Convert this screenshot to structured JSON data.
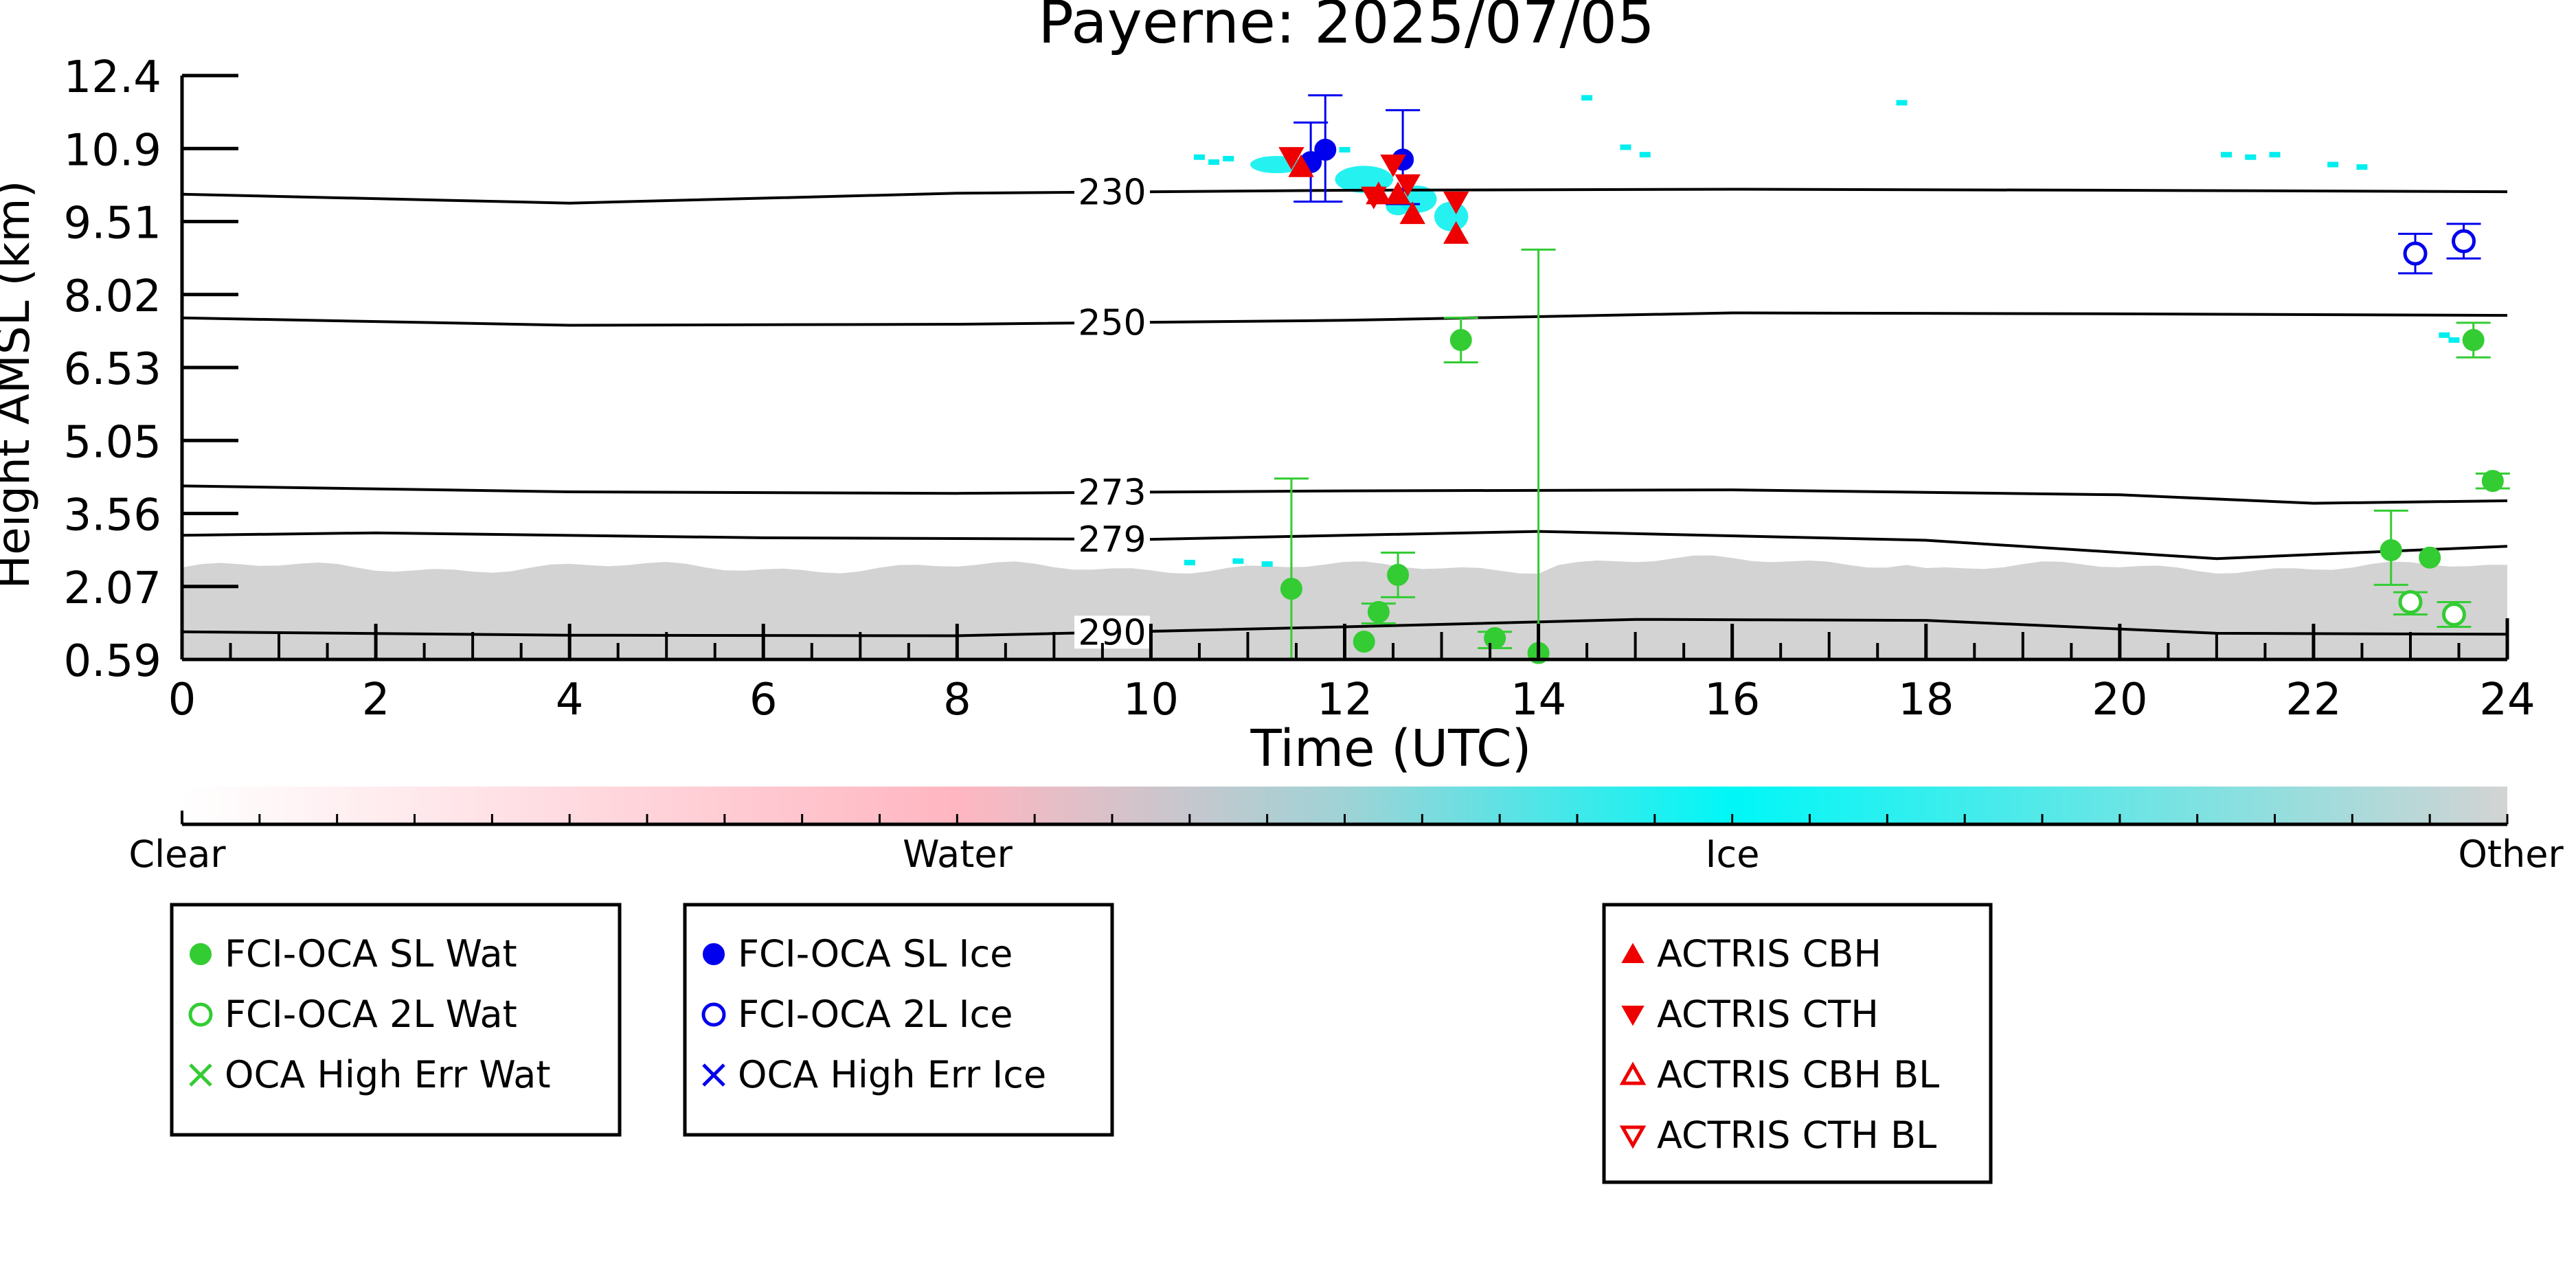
{
  "chart_data": {
    "type": "scatter",
    "title": "Payerne: 2025/07/05",
    "xlabel": "Time (UTC)",
    "ylabel": "Height AMSL (km)",
    "xlim": [
      0,
      24
    ],
    "ylim": [
      0.59,
      12.4
    ],
    "x_ticks": [
      "0",
      "2",
      "4",
      "6",
      "8",
      "10",
      "12",
      "14",
      "16",
      "18",
      "20",
      "22",
      "24"
    ],
    "y_ticks": [
      "0.59",
      "2.07",
      "3.56",
      "5.05",
      "6.53",
      "8.02",
      "9.51",
      "10.9",
      "12.4"
    ],
    "grid": false,
    "colors": {
      "water": "#33cc33",
      "ice": "#0000ee",
      "actris": "#ee0000",
      "ice_pixels": "#00eeee",
      "other_pixels": "#d3d3d3",
      "clear": "#ffffff",
      "water_class": "#ffb6c1"
    },
    "isotherms": [
      {
        "label": "230",
        "points": [
          [
            0,
            10.0
          ],
          [
            4,
            9.82
          ],
          [
            8,
            10.02
          ],
          [
            12,
            10.08
          ],
          [
            16,
            10.1
          ],
          [
            20,
            10.08
          ],
          [
            24,
            10.05
          ]
        ]
      },
      {
        "label": "250",
        "points": [
          [
            0,
            7.5
          ],
          [
            4,
            7.35
          ],
          [
            8,
            7.37
          ],
          [
            12,
            7.45
          ],
          [
            16,
            7.6
          ],
          [
            20,
            7.58
          ],
          [
            24,
            7.55
          ]
        ]
      },
      {
        "label": "273",
        "points": [
          [
            0,
            4.1
          ],
          [
            4,
            3.98
          ],
          [
            8,
            3.95
          ],
          [
            12,
            4.0
          ],
          [
            16,
            4.02
          ],
          [
            20,
            3.92
          ],
          [
            22,
            3.75
          ],
          [
            24,
            3.8
          ]
        ]
      },
      {
        "label": "279",
        "points": [
          [
            0,
            3.1
          ],
          [
            2,
            3.15
          ],
          [
            6,
            3.05
          ],
          [
            10,
            3.02
          ],
          [
            14,
            3.18
          ],
          [
            18,
            3.0
          ],
          [
            21,
            2.63
          ],
          [
            24,
            2.88
          ]
        ]
      },
      {
        "label": "290",
        "points": [
          [
            0,
            1.15
          ],
          [
            4,
            1.08
          ],
          [
            8,
            1.07
          ],
          [
            12,
            1.25
          ],
          [
            15,
            1.4
          ],
          [
            18,
            1.38
          ],
          [
            21,
            1.12
          ],
          [
            24,
            1.1
          ]
        ]
      }
    ],
    "series": [
      {
        "name": "FCI-OCA SL Wat",
        "marker": "filled-circle",
        "color": "#33cc33",
        "points": [
          {
            "x": 11.45,
            "y": 2.02,
            "lo": 0.59,
            "hi": 4.25
          },
          {
            "x": 12.2,
            "y": 0.95
          },
          {
            "x": 12.35,
            "y": 1.55,
            "lo": 1.32,
            "hi": 1.72
          },
          {
            "x": 12.55,
            "y": 2.3,
            "lo": 1.85,
            "hi": 2.75
          },
          {
            "x": 13.2,
            "y": 7.05,
            "lo": 6.6,
            "hi": 7.5
          },
          {
            "x": 13.55,
            "y": 1.02,
            "lo": 0.82,
            "hi": 1.15
          },
          {
            "x": 14.0,
            "y": 0.72,
            "lo": 0.59,
            "hi": 8.88
          },
          {
            "x": 22.8,
            "y": 2.8,
            "lo": 2.1,
            "hi": 3.6
          },
          {
            "x": 23.2,
            "y": 2.65
          },
          {
            "x": 23.65,
            "y": 7.05,
            "lo": 6.7,
            "hi": 7.4
          },
          {
            "x": 23.85,
            "y": 4.2,
            "lo": 4.05,
            "hi": 4.35
          }
        ]
      },
      {
        "name": "FCI-OCA 2L Wat",
        "marker": "open-circle",
        "color": "#33cc33",
        "points": [
          {
            "x": 23.0,
            "y": 1.75,
            "lo": 1.5,
            "hi": 1.95
          },
          {
            "x": 23.45,
            "y": 1.5,
            "lo": 1.25,
            "hi": 1.75
          }
        ]
      },
      {
        "name": "OCA High Err Wat",
        "marker": "x",
        "color": "#33cc33",
        "points": []
      },
      {
        "name": "FCI-OCA SL Ice",
        "marker": "filled-circle",
        "color": "#0000ee",
        "points": [
          {
            "x": 11.65,
            "y": 10.65,
            "lo": 9.85,
            "hi": 11.45
          },
          {
            "x": 11.8,
            "y": 10.9,
            "lo": 9.85,
            "hi": 12.0
          },
          {
            "x": 12.6,
            "y": 10.7,
            "lo": 9.8,
            "hi": 11.7
          }
        ]
      },
      {
        "name": "FCI-OCA 2L Ice",
        "marker": "open-circle",
        "color": "#0000ee",
        "points": [
          {
            "x": 23.05,
            "y": 8.8,
            "lo": 8.4,
            "hi": 9.2
          },
          {
            "x": 23.55,
            "y": 9.05,
            "lo": 8.7,
            "hi": 9.4
          }
        ]
      },
      {
        "name": "OCA High Err Ice",
        "marker": "x",
        "color": "#0000ee",
        "points": []
      },
      {
        "name": "ACTRIS CBH",
        "marker": "triangle-up",
        "color": "#ee0000",
        "points": [
          {
            "x": 11.55,
            "y": 10.55
          },
          {
            "x": 12.35,
            "y": 10.0
          },
          {
            "x": 12.55,
            "y": 10.0
          },
          {
            "x": 12.7,
            "y": 9.6
          },
          {
            "x": 13.15,
            "y": 9.2
          }
        ]
      },
      {
        "name": "ACTRIS CTH",
        "marker": "triangle-down",
        "color": "#ee0000",
        "points": [
          {
            "x": 11.45,
            "y": 10.75
          },
          {
            "x": 12.3,
            "y": 9.95
          },
          {
            "x": 12.5,
            "y": 10.6
          },
          {
            "x": 12.65,
            "y": 10.2
          },
          {
            "x": 13.15,
            "y": 9.85
          }
        ]
      },
      {
        "name": "ACTRIS CBH BL",
        "marker": "open-triangle-up",
        "color": "#ee0000",
        "points": []
      },
      {
        "name": "ACTRIS CTH BL",
        "marker": "open-triangle-down",
        "color": "#ee0000",
        "points": []
      }
    ],
    "colorbar": {
      "labels": [
        "Clear",
        "Water",
        "Ice",
        "Other"
      ],
      "stops": [
        "#ffffff",
        "#ffb6c1",
        "#00f7f7",
        "#d3d3d3"
      ]
    }
  },
  "legends": [
    {
      "items": [
        {
          "label": "FCI-OCA SL Wat",
          "marker": "filled-circle",
          "color": "#33cc33"
        },
        {
          "label": "FCI-OCA 2L Wat",
          "marker": "open-circle",
          "color": "#33cc33"
        },
        {
          "label": "OCA High Err Wat",
          "marker": "x",
          "color": "#33cc33"
        }
      ]
    },
    {
      "items": [
        {
          "label": "FCI-OCA SL Ice",
          "marker": "filled-circle",
          "color": "#0000ee"
        },
        {
          "label": "FCI-OCA 2L Ice",
          "marker": "open-circle",
          "color": "#0000ee"
        },
        {
          "label": "OCA High Err Ice",
          "marker": "x",
          "color": "#0000ee"
        }
      ]
    },
    {
      "items": [
        {
          "label": "ACTRIS CBH",
          "marker": "triangle-up",
          "color": "#ee0000"
        },
        {
          "label": "ACTRIS CTH",
          "marker": "triangle-down",
          "color": "#ee0000"
        },
        {
          "label": "ACTRIS CBH BL",
          "marker": "open-triangle-up",
          "color": "#ee0000"
        },
        {
          "label": "ACTRIS CTH BL",
          "marker": "open-triangle-down",
          "color": "#ee0000"
        }
      ]
    }
  ]
}
